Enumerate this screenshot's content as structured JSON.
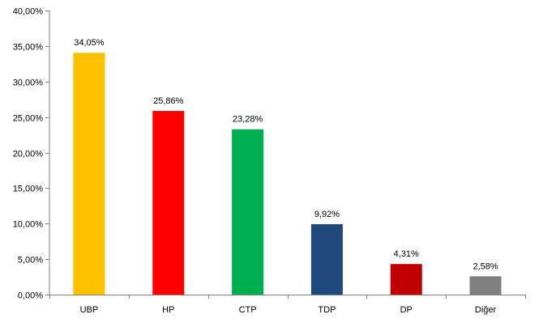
{
  "chart_data": {
    "type": "bar",
    "categories": [
      "UBP",
      "HP",
      "CTP",
      "TDP",
      "DP",
      "Diğer"
    ],
    "values": [
      34.05,
      25.86,
      23.28,
      9.92,
      4.31,
      2.58
    ],
    "value_labels": [
      "34,05%",
      "25,86%",
      "23,28%",
      "9,92%",
      "4,31%",
      "2,58%"
    ],
    "colors": [
      "#ffc000",
      "#ff0000",
      "#00b050",
      "#1f497d",
      "#c00000",
      "#808080"
    ],
    "ylim": [
      0,
      40
    ],
    "yticks": [
      0,
      5,
      10,
      15,
      20,
      25,
      30,
      35,
      40
    ],
    "ytick_labels": [
      "0,00%",
      "5,00%",
      "10,00%",
      "15,00%",
      "20,00%",
      "25,00%",
      "30,00%",
      "35,00%",
      "40,00%"
    ],
    "grid": false,
    "legend": "none"
  }
}
